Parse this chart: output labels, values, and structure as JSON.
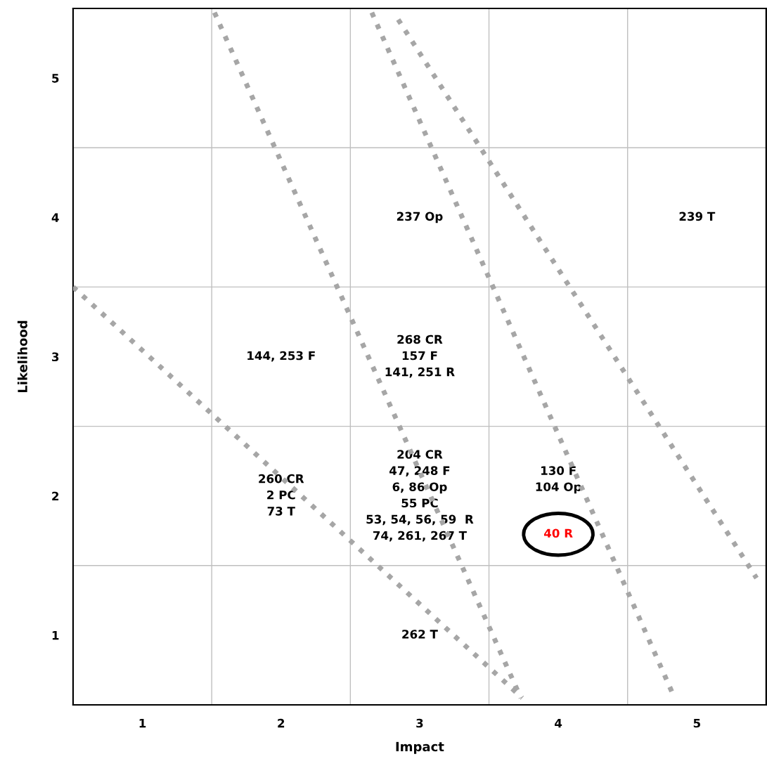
{
  "chart_data": [
    {
      "type": "heatmap",
      "tick_labels": false,
      "categories": [
        "1",
        "2",
        "3",
        "4",
        "5"
      ],
      "y_categories": [
        "5",
        "4",
        "3",
        "2",
        "1"
      ],
      "grid": true,
      "cells": [
        [
          null,
          null,
          null,
          null,
          null
        ],
        [
          null,
          null,
          null,
          null,
          null
        ],
        [
          null,
          null,
          null,
          null,
          null
        ],
        [
          null,
          null,
          null,
          null,
          null
        ],
        [
          null,
          null,
          null,
          null,
          null
        ]
      ],
      "cell_labels": [
        [
          null,
          null,
          null,
          null,
          null
        ],
        [
          null,
          null,
          "237 Op",
          null,
          "239 T"
        ],
        [
          null,
          "144, 253 F",
          "268 CR\n157 F\n141, 251 R",
          null,
          null
        ],
        [
          null,
          "260 CR\n2 PC\n73 T",
          "204 CR\n47, 248 F\n6, 86 Op\n55 PC\n53, 54, 56, 59  R\n74, 261, 267 T",
          "130 F\n104 Op\n\n",
          null
        ],
        [
          null,
          null,
          "262 T",
          null,
          null
        ]
      ],
      "annotations": [
        "40 R"
      ]
    },
    {
      "type": "line",
      "xlabel": "Impact",
      "ylabel": "Likelihood",
      "xlim": [
        0.5,
        5.5
      ],
      "ylim": [
        0.5,
        5.5
      ],
      "xticks": [
        1,
        2,
        3,
        4,
        5
      ],
      "yticks": [
        1,
        2,
        3,
        4,
        5
      ],
      "line_style": "dotted",
      "series": [
        {
          "color": "#a6a6a6",
          "x": [
            0.5,
            3.74
          ],
          "values": [
            3.5,
            0.55
          ]
        },
        {
          "color": "#a6a6a6",
          "x": [
            1.52,
            3.73
          ],
          "values": [
            5.47,
            0.55
          ]
        },
        {
          "color": "#a6a6a6",
          "x": [
            2.655,
            4.83
          ],
          "values": [
            5.47,
            0.57
          ]
        },
        {
          "color": "#a6a6a6",
          "x": [
            2.845,
            5.43
          ],
          "values": [
            5.42,
            1.41
          ]
        }
      ]
    }
  ]
}
